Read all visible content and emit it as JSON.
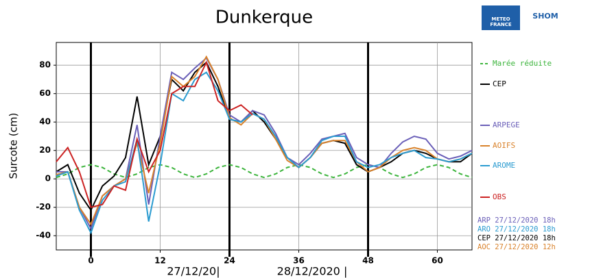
{
  "chart_data": {
    "type": "line",
    "title": "Dunkerque",
    "y_label": "Surcote (cm)",
    "logos": [
      "METEO",
      "FRANCE",
      "SHOM"
    ],
    "date_labels": [
      "27/12/20|",
      "28/12/2020 |"
    ],
    "xlim": [
      -6,
      66
    ],
    "ylim": [
      -50,
      96
    ],
    "xticks": [
      0,
      12,
      24,
      36,
      48,
      60
    ],
    "yticks": [
      -40,
      -20,
      0,
      20,
      40,
      60,
      80
    ],
    "day_lines": [
      0,
      24,
      48
    ],
    "grid": true,
    "x": [
      -6,
      -4,
      -2,
      0,
      2,
      4,
      6,
      8,
      10,
      12,
      14,
      16,
      18,
      20,
      22,
      24,
      26,
      28,
      30,
      32,
      34,
      36,
      38,
      40,
      42,
      44,
      46,
      48,
      50,
      52,
      54,
      56,
      58,
      60,
      62,
      64,
      66
    ],
    "series": [
      {
        "name": "Marée réduite",
        "color": "#3cb43c",
        "dash": true,
        "values": [
          1,
          3.5,
          8,
          10,
          8,
          3.5,
          1,
          3.5,
          8,
          10,
          8,
          3.5,
          1,
          3.5,
          8,
          10,
          8,
          3.5,
          1,
          3.5,
          8,
          10,
          8,
          3.5,
          1,
          3.5,
          8,
          10,
          8,
          3.5,
          1,
          3.5,
          8,
          10,
          8,
          3.5,
          1
        ]
      },
      {
        "name": "CEP",
        "color": "#000000",
        "values": [
          5,
          10,
          -10,
          -22,
          -5,
          2,
          15,
          58,
          10,
          30,
          70,
          62,
          75,
          82,
          65,
          42,
          40,
          48,
          40,
          28,
          15,
          8,
          15,
          25,
          27,
          25,
          10,
          5,
          8,
          12,
          18,
          20,
          18,
          14,
          12,
          12,
          18
        ]
      },
      {
        "name": "ARPEGE",
        "color": "#6a5fb8",
        "values": [
          5,
          5,
          -20,
          -35,
          -12,
          -5,
          0,
          38,
          -18,
          30,
          75,
          70,
          78,
          85,
          70,
          45,
          40,
          48,
          45,
          32,
          15,
          10,
          18,
          28,
          30,
          32,
          15,
          10,
          8,
          18,
          26,
          30,
          28,
          18,
          14,
          16,
          20
        ]
      },
      {
        "name": "AOIFS",
        "color": "#d9822b",
        "values": [
          3,
          5,
          -20,
          -32,
          -12,
          -5,
          0,
          25,
          -10,
          25,
          72,
          65,
          72,
          86,
          70,
          43,
          38,
          46,
          42,
          28,
          13,
          8,
          15,
          25,
          27,
          27,
          12,
          5,
          8,
          15,
          20,
          22,
          20,
          14,
          12,
          14,
          18
        ]
      },
      {
        "name": "AROME",
        "color": "#2a9bd0",
        "values": [
          2,
          5,
          -22,
          -38,
          -15,
          -5,
          -2,
          28,
          -30,
          10,
          60,
          55,
          70,
          75,
          62,
          42,
          40,
          46,
          42,
          30,
          15,
          8,
          15,
          27,
          30,
          30,
          12,
          8,
          10,
          15,
          18,
          20,
          15,
          14,
          12,
          14,
          18
        ]
      },
      {
        "name": "OBS",
        "color": "#cc2222",
        "values": [
          12,
          22,
          5,
          -20,
          -18,
          -5,
          -8,
          28,
          5,
          20,
          60,
          65,
          65,
          82,
          55,
          48,
          52,
          45,
          null,
          null,
          null,
          null,
          null,
          null,
          null,
          null,
          null,
          null,
          null,
          null,
          null,
          null,
          null,
          null,
          null,
          null,
          null
        ]
      }
    ],
    "runs": [
      {
        "text": "ARP 27/12/2020 18h",
        "color": "#6a5fb8"
      },
      {
        "text": "ARO 27/12/2020 18h",
        "color": "#2a9bd0"
      },
      {
        "text": "CEP 27/12/2020 18h",
        "color": "#000000"
      },
      {
        "text": "AOC 27/12/2020 12h",
        "color": "#d9822b"
      }
    ]
  }
}
